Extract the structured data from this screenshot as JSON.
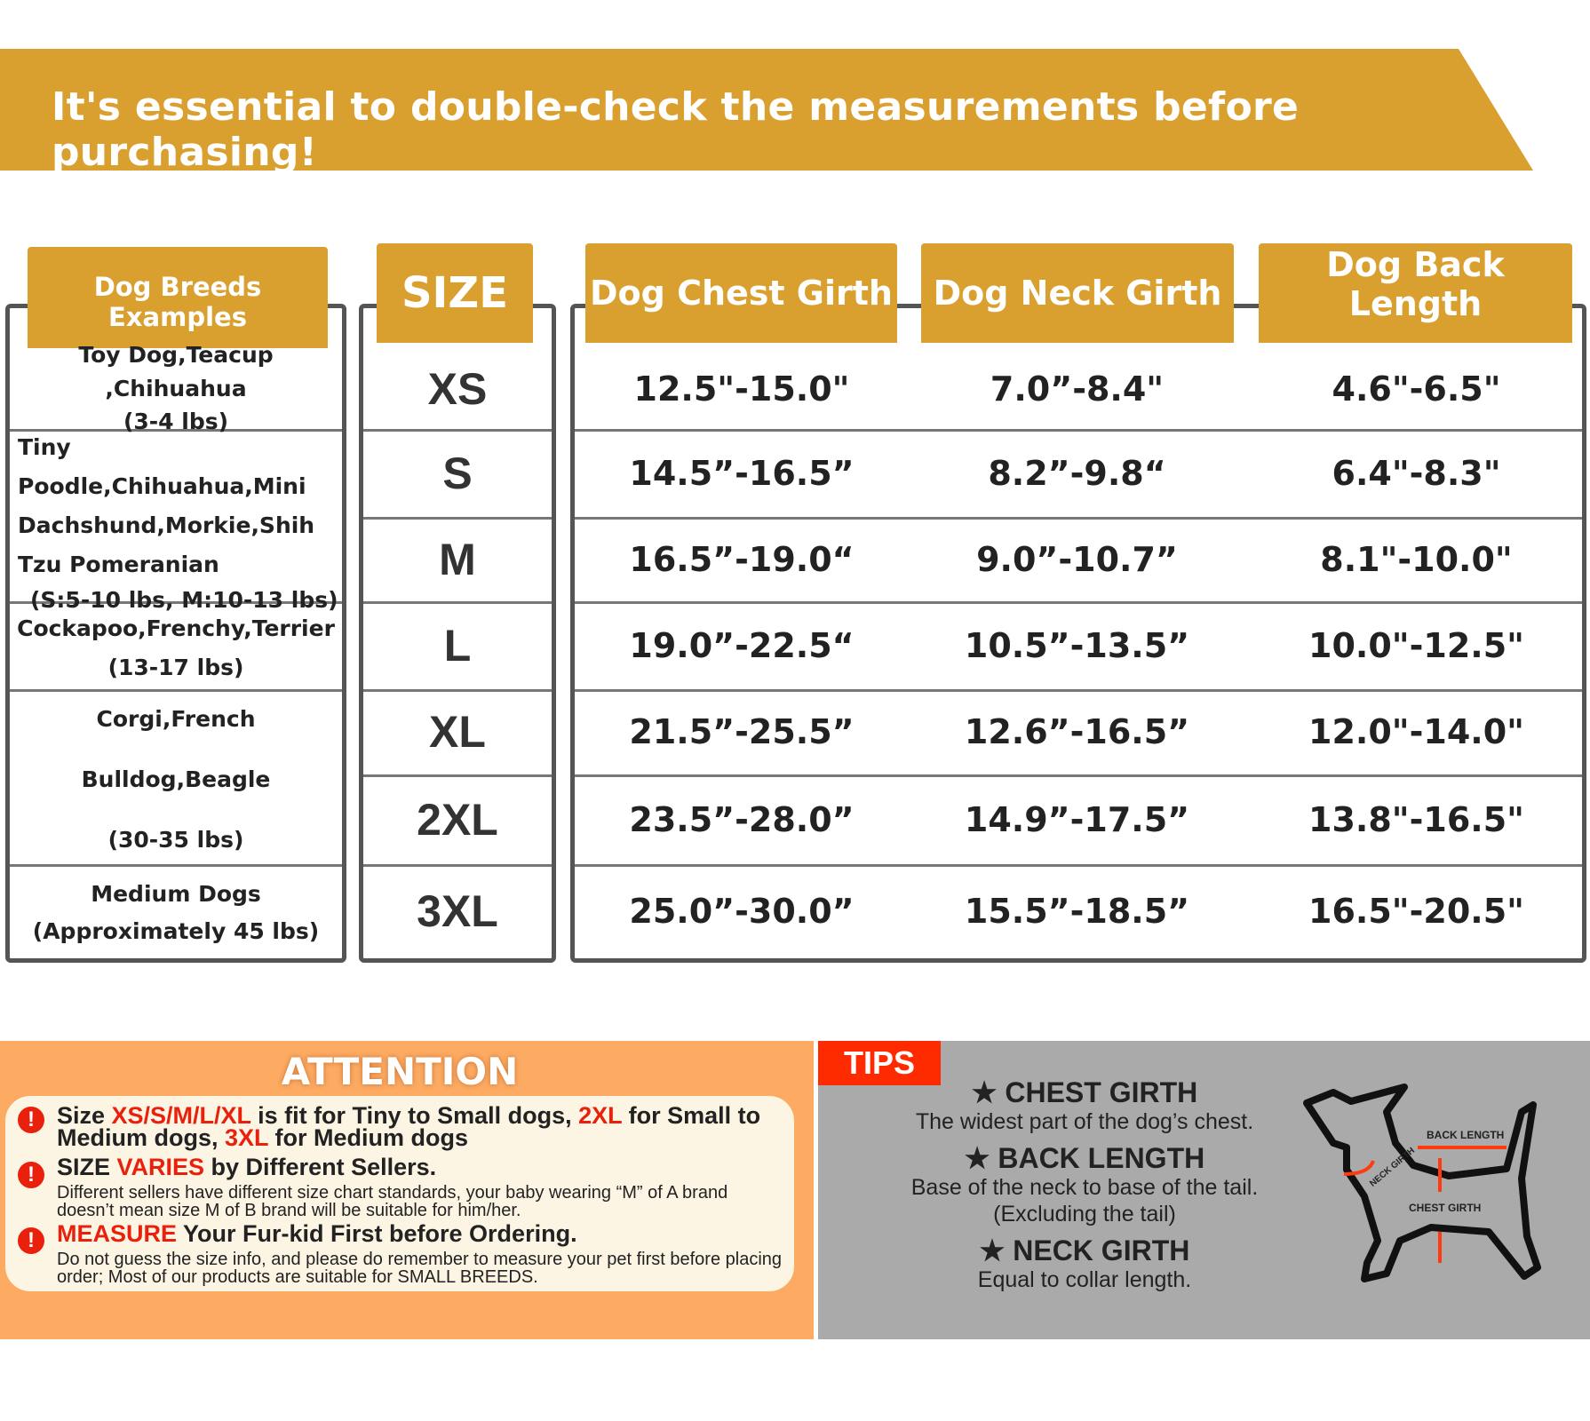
{
  "banner": {
    "text": "It's essential to double-check the measurements before purchasing!"
  },
  "headers": {
    "breeds": "Dog Breeds Examples",
    "size": "SIZE",
    "chest": "Dog Chest Girth",
    "neck": "Dog Neck Girth",
    "back": "Dog Back Length"
  },
  "breeds": [
    {
      "name": "Toy Dog,Teacup ,Chihuahua",
      "weight": "(3-4 lbs)"
    },
    {
      "name": "Tiny Poodle,Chihuahua,Mini Dachshund,Morkie,Shih Tzu Pomeranian",
      "weight": "(S:5-10 lbs, M:10-13 lbs)"
    },
    {
      "name": "Cockapoo,Frenchy,Terrier",
      "weight": "(13-17 lbs)"
    },
    {
      "name": "Corgi,French Bulldog,Beagle",
      "weight": "(30-35 lbs)"
    },
    {
      "name": "Medium Dogs",
      "weight": "(Approximately 45 lbs)"
    }
  ],
  "rows": [
    {
      "size": "XS",
      "chest": "12.5\"-15.0\"",
      "neck": "7.0”-8.4\"",
      "back": "4.6\"-6.5\""
    },
    {
      "size": "S",
      "chest": "14.5”-16.5”",
      "neck": "8.2”-9.8“",
      "back": "6.4\"-8.3\""
    },
    {
      "size": "M",
      "chest": "16.5”-19.0“",
      "neck": "9.0”-10.7”",
      "back": "8.1\"-10.0\""
    },
    {
      "size": "L",
      "chest": "19.0”-22.5“",
      "neck": "10.5”-13.5”",
      "back": "10.0\"-12.5\""
    },
    {
      "size": "XL",
      "chest": "21.5”-25.5”",
      "neck": "12.6”-16.5”",
      "back": "12.0\"-14.0\""
    },
    {
      "size": "2XL",
      "chest": "23.5”-28.0”",
      "neck": "14.9”-17.5”",
      "back": "13.8\"-16.5\""
    },
    {
      "size": "3XL",
      "chest": "25.0”-30.0”",
      "neck": "15.5”-18.5”",
      "back": "16.5\"-20.5\""
    }
  ],
  "attention": {
    "title": "ATTENTION",
    "l1a": "Size ",
    "l1b": "XS/S/M/L/XL",
    "l1c": " is fit for Tiny to Small dogs,  ",
    "l1d": "2XL",
    "l1e": " for Small to Medium dogs, ",
    "l1f": "3XL",
    "l1g": " for Medium dogs",
    "l2a": "SIZE ",
    "l2b": "VARIES",
    "l2c": " by Different Sellers.",
    "l2d": "Different sellers have different size chart standards, your baby wearing “M” of A brand doesn’t mean size M of B brand will be suitable for him/her.",
    "l3a": "MEASURE",
    "l3b": " Your Fur-kid First before Ordering.",
    "l3d": "Do not guess the size info,  and please do remember to measure your pet first before placing order; Most of our products are suitable for SMALL BREEDS."
  },
  "tips": {
    "badge": "TIPS",
    "items": [
      {
        "title": "CHEST GIRTH",
        "desc": "The widest part of the dog’s chest."
      },
      {
        "title": "BACK LENGTH",
        "desc": "Base of the neck to base of the tail.",
        "desc2": "(Excluding the tail)"
      },
      {
        "title": "NECK GIRTH",
        "desc": "Equal to collar length."
      }
    ],
    "diagram": {
      "back": "BACK LENGTH",
      "neck": "NECK GIRTH",
      "chest": "CHEST GIRTH"
    }
  },
  "colors": {
    "gold": "#d9a030",
    "orange": "#fdab63",
    "red": "#e8200c",
    "gray": "#aaaaaa"
  }
}
